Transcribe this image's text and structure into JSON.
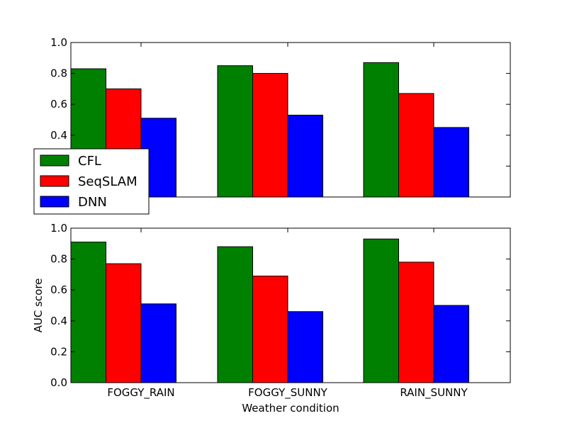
{
  "chart_data": [
    {
      "type": "bar",
      "categories": [
        "FOGGY_RAIN",
        "FOGGY_SUNNY",
        "RAIN_SUNNY"
      ],
      "series": [
        {
          "name": "CFL",
          "color": "#008000",
          "values": [
            0.83,
            0.85,
            0.87
          ]
        },
        {
          "name": "SeqSLAM",
          "color": "#ff0000",
          "values": [
            0.7,
            0.8,
            0.67
          ]
        },
        {
          "name": "DNN",
          "color": "#0000ff",
          "values": [
            0.51,
            0.53,
            0.45
          ]
        }
      ],
      "ylim": [
        0.0,
        1.0
      ],
      "yticks": [
        "",
        "",
        "0.4",
        "0.6",
        "0.8",
        "1.0"
      ],
      "show_xticklabels": false,
      "xlabel": "",
      "ylabel": "",
      "grid": false,
      "legend": {
        "position": "lower-left",
        "entries": [
          "CFL",
          "SeqSLAM",
          "DNN"
        ]
      }
    },
    {
      "type": "bar",
      "categories": [
        "FOGGY_RAIN",
        "FOGGY_SUNNY",
        "RAIN_SUNNY"
      ],
      "series": [
        {
          "name": "CFL",
          "color": "#008000",
          "values": [
            0.91,
            0.88,
            0.93
          ]
        },
        {
          "name": "SeqSLAM",
          "color": "#ff0000",
          "values": [
            0.77,
            0.69,
            0.78
          ]
        },
        {
          "name": "DNN",
          "color": "#0000ff",
          "values": [
            0.51,
            0.46,
            0.5
          ]
        }
      ],
      "ylim": [
        0.0,
        1.0
      ],
      "yticks": [
        "0.0",
        "0.2",
        "0.4",
        "0.6",
        "0.8",
        "1.0"
      ],
      "show_xticklabels": true,
      "xlabel": "Weather condition",
      "ylabel": "AUC score",
      "grid": false
    }
  ]
}
